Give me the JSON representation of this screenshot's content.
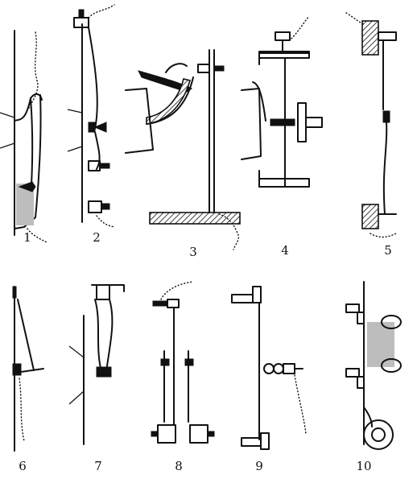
{
  "figures": [
    {
      "label": "1"
    },
    {
      "label": "2"
    },
    {
      "label": "3"
    },
    {
      "label": "4"
    },
    {
      "label": "5"
    },
    {
      "label": "6"
    },
    {
      "label": "7"
    },
    {
      "label": "8"
    },
    {
      "label": "9"
    },
    {
      "label": "10"
    }
  ],
  "colors": {
    "ink": "#111111",
    "paper": "#ffffff",
    "tint": "#bdbdbd"
  }
}
